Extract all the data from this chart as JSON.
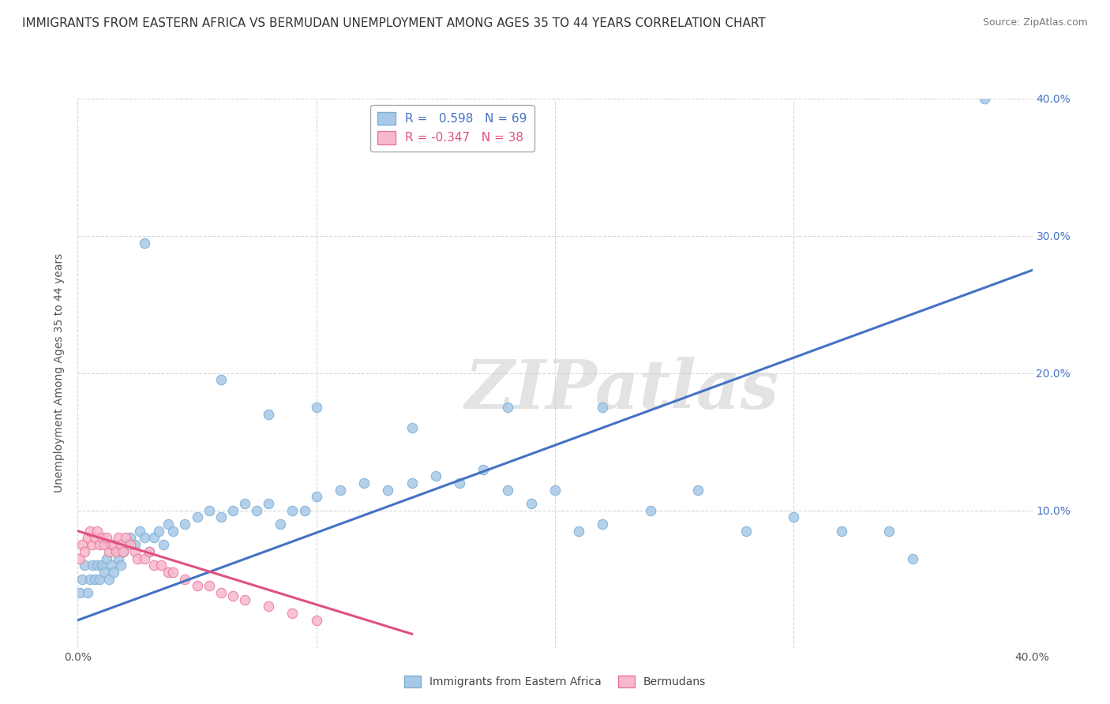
{
  "title": "IMMIGRANTS FROM EASTERN AFRICA VS BERMUDAN UNEMPLOYMENT AMONG AGES 35 TO 44 YEARS CORRELATION CHART",
  "source": "Source: ZipAtlas.com",
  "ylabel": "Unemployment Among Ages 35 to 44 years",
  "legend_entries": [
    {
      "label": "Immigrants from Eastern Africa",
      "color": "#6baed6",
      "R": "0.598",
      "N": "69"
    },
    {
      "label": "Bermudans",
      "color": "#fa9fb5",
      "R": "-0.347",
      "N": "38"
    }
  ],
  "xlim": [
    0.0,
    0.4
  ],
  "ylim": [
    0.0,
    0.4
  ],
  "xticks": [
    0.0,
    0.1,
    0.2,
    0.3,
    0.4
  ],
  "yticks": [
    0.0,
    0.1,
    0.2,
    0.3,
    0.4
  ],
  "xticklabels": [
    "0.0%",
    "",
    "",
    "",
    "40.0%"
  ],
  "yticklabels": [
    "",
    "10.0%",
    "20.0%",
    "30.0%",
    "40.0%"
  ],
  "watermark": "ZIPatlas",
  "blue_scatter_x": [
    0.001,
    0.002,
    0.003,
    0.004,
    0.005,
    0.006,
    0.007,
    0.008,
    0.009,
    0.01,
    0.011,
    0.012,
    0.013,
    0.014,
    0.015,
    0.016,
    0.017,
    0.018,
    0.019,
    0.02,
    0.022,
    0.024,
    0.026,
    0.028,
    0.03,
    0.032,
    0.034,
    0.036,
    0.038,
    0.04,
    0.045,
    0.05,
    0.055,
    0.06,
    0.065,
    0.07,
    0.075,
    0.08,
    0.085,
    0.09,
    0.095,
    0.1,
    0.11,
    0.12,
    0.13,
    0.14,
    0.15,
    0.16,
    0.17,
    0.18,
    0.19,
    0.2,
    0.21,
    0.22,
    0.24,
    0.26,
    0.28,
    0.3,
    0.32,
    0.34,
    0.028,
    0.06,
    0.08,
    0.1,
    0.14,
    0.18,
    0.22,
    0.35,
    0.38
  ],
  "blue_scatter_y": [
    0.04,
    0.05,
    0.06,
    0.04,
    0.05,
    0.06,
    0.05,
    0.06,
    0.05,
    0.06,
    0.055,
    0.065,
    0.05,
    0.06,
    0.055,
    0.07,
    0.065,
    0.06,
    0.07,
    0.075,
    0.08,
    0.075,
    0.085,
    0.08,
    0.07,
    0.08,
    0.085,
    0.075,
    0.09,
    0.085,
    0.09,
    0.095,
    0.1,
    0.095,
    0.1,
    0.105,
    0.1,
    0.105,
    0.09,
    0.1,
    0.1,
    0.11,
    0.115,
    0.12,
    0.115,
    0.12,
    0.125,
    0.12,
    0.13,
    0.115,
    0.105,
    0.115,
    0.085,
    0.09,
    0.1,
    0.115,
    0.085,
    0.095,
    0.085,
    0.085,
    0.295,
    0.195,
    0.17,
    0.175,
    0.16,
    0.175,
    0.175,
    0.065,
    0.4
  ],
  "pink_scatter_x": [
    0.001,
    0.002,
    0.003,
    0.004,
    0.005,
    0.006,
    0.007,
    0.008,
    0.009,
    0.01,
    0.011,
    0.012,
    0.013,
    0.014,
    0.015,
    0.016,
    0.017,
    0.018,
    0.019,
    0.02,
    0.022,
    0.024,
    0.025,
    0.028,
    0.03,
    0.032,
    0.035,
    0.038,
    0.04,
    0.045,
    0.05,
    0.055,
    0.06,
    0.065,
    0.07,
    0.08,
    0.09,
    0.1
  ],
  "pink_scatter_y": [
    0.065,
    0.075,
    0.07,
    0.08,
    0.085,
    0.075,
    0.08,
    0.085,
    0.075,
    0.08,
    0.075,
    0.08,
    0.07,
    0.075,
    0.075,
    0.07,
    0.08,
    0.075,
    0.07,
    0.08,
    0.075,
    0.07,
    0.065,
    0.065,
    0.07,
    0.06,
    0.06,
    0.055,
    0.055,
    0.05,
    0.045,
    0.045,
    0.04,
    0.038,
    0.035,
    0.03,
    0.025,
    0.02
  ],
  "blue_line_x": [
    0.0,
    0.4
  ],
  "blue_line_y": [
    0.02,
    0.275
  ],
  "pink_line_x": [
    0.0,
    0.14
  ],
  "pink_line_y": [
    0.085,
    0.01
  ],
  "blue_color": "#4472c4",
  "pink_color": "#e05080",
  "blue_scatter_color": "#a8c8e8",
  "pink_scatter_color": "#f8b8cc",
  "blue_edge_color": "#7bafd4",
  "pink_edge_color": "#e87898",
  "grid_color": "#d8d8d8",
  "background_color": "#ffffff",
  "title_fontsize": 11,
  "axis_label_fontsize": 10,
  "tick_fontsize": 10,
  "right_tick_color": "#4472c4"
}
